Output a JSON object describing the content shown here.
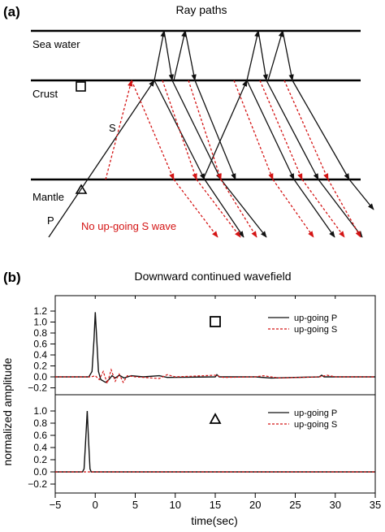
{
  "panel_a": {
    "label": "(a)",
    "title": "Ray paths",
    "layers": [
      "Sea water",
      "Crust",
      "Mantle"
    ],
    "ray_labels": {
      "s": "S",
      "p": "P"
    },
    "annotation": "No up-going S wave"
  },
  "panel_b": {
    "label": "(b)",
    "title": "Downward continued wavefield",
    "ylabel": "normalized amplitude",
    "xlabel": "time(sec)",
    "x_ticks": [
      "−5",
      "0",
      "5",
      "10",
      "15",
      "20",
      "25",
      "30",
      "35"
    ],
    "y_ticks_top": [
      "1.2",
      "1.0",
      "0.8",
      "0.6",
      "0.4",
      "0.2",
      "0.0",
      "−0.2"
    ],
    "y_ticks_bottom": [
      "1.0",
      "0.8",
      "0.6",
      "0.4",
      "0.2",
      "0.0",
      "−0.2"
    ],
    "legend": [
      "up-going P",
      "up-going S"
    ]
  },
  "colors": {
    "p_ray": "#111111",
    "s_ray": "#d41414",
    "axis": "#000000"
  },
  "chart_data": [
    {
      "type": "line",
      "panel": "upper (receiver at crust, square marker)",
      "xlabel": "time(sec)",
      "ylabel": "normalized amplitude",
      "xlim": [
        -5,
        35
      ],
      "ylim": [
        -0.3,
        1.3
      ],
      "series": [
        {
          "name": "up-going P",
          "points": [
            [
              -5,
              0
            ],
            [
              -0.8,
              0
            ],
            [
              -0.4,
              0.1
            ],
            [
              -0.15,
              0.7
            ],
            [
              0,
              1.18
            ],
            [
              0.15,
              0.8
            ],
            [
              0.4,
              0.1
            ],
            [
              0.7,
              -0.05
            ],
            [
              1.3,
              -0.1
            ],
            [
              1.7,
              -0.05
            ],
            [
              2.1,
              0.02
            ],
            [
              2.5,
              -0.02
            ],
            [
              3.0,
              0.03
            ],
            [
              3.6,
              -0.02
            ],
            [
              4.5,
              0.02
            ],
            [
              6,
              0
            ],
            [
              8,
              0.02
            ],
            [
              9,
              -0.01
            ],
            [
              15,
              0
            ],
            [
              15.2,
              0.04
            ],
            [
              15.5,
              0
            ],
            [
              20,
              0
            ],
            [
              22,
              -0.02
            ],
            [
              28,
              0
            ],
            [
              28.3,
              0.03
            ],
            [
              28.6,
              0
            ],
            [
              35,
              0
            ]
          ]
        },
        {
          "name": "up-going S",
          "points": [
            [
              -5,
              0
            ],
            [
              -0.5,
              0
            ],
            [
              0,
              0.02
            ],
            [
              0.5,
              -0.05
            ],
            [
              1,
              0.1
            ],
            [
              1.5,
              -0.12
            ],
            [
              2,
              0.13
            ],
            [
              2.5,
              -0.08
            ],
            [
              3,
              0.05
            ],
            [
              3.5,
              -0.1
            ],
            [
              4,
              0.02
            ],
            [
              5,
              0
            ],
            [
              8,
              -0.03
            ],
            [
              9,
              0.04
            ],
            [
              10,
              0
            ],
            [
              15,
              0.03
            ],
            [
              16,
              -0.01
            ],
            [
              20,
              0
            ],
            [
              21,
              0.02
            ],
            [
              23,
              -0.02
            ],
            [
              28,
              0
            ],
            [
              29,
              0.03
            ],
            [
              30,
              0
            ],
            [
              35,
              0
            ]
          ]
        }
      ]
    },
    {
      "type": "line",
      "panel": "lower (receiver at mantle, triangle marker)",
      "xlabel": "time(sec)",
      "ylabel": "normalized amplitude",
      "xlim": [
        -5,
        35
      ],
      "ylim": [
        -0.3,
        1.1
      ],
      "series": [
        {
          "name": "up-going P",
          "points": [
            [
              -5,
              0
            ],
            [
              -1.6,
              0
            ],
            [
              -1.4,
              0.05
            ],
            [
              -1.2,
              0.5
            ],
            [
              -1.0,
              1.0
            ],
            [
              -0.85,
              0.55
            ],
            [
              -0.65,
              0.05
            ],
            [
              -0.5,
              0
            ],
            [
              35,
              0
            ]
          ]
        },
        {
          "name": "up-going S",
          "points": [
            [
              -5,
              0
            ],
            [
              35,
              0
            ]
          ]
        }
      ]
    }
  ]
}
